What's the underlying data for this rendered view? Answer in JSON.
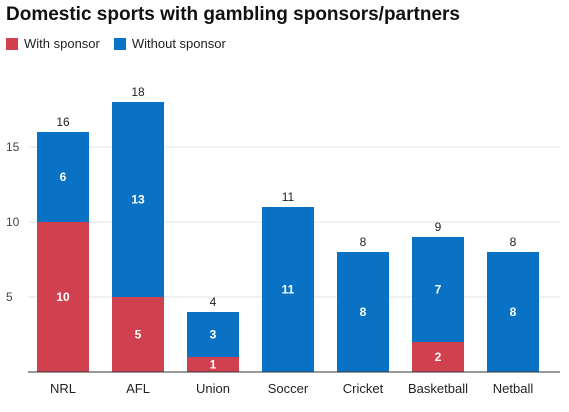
{
  "chart_data": {
    "type": "bar",
    "stacked": true,
    "title": "Domestic sports with gambling sponsors/partners",
    "categories": [
      "NRL",
      "AFL",
      "Union",
      "Soccer",
      "Cricket",
      "Basketball",
      "Netball"
    ],
    "series": [
      {
        "name": "With sponsor",
        "color": "#d0404f",
        "values": [
          10,
          5,
          1,
          0,
          0,
          2,
          0
        ]
      },
      {
        "name": "Without sponsor",
        "color": "#0a72c4",
        "values": [
          6,
          13,
          3,
          11,
          8,
          7,
          8
        ]
      }
    ],
    "totals": [
      16,
      18,
      4,
      11,
      8,
      9,
      8
    ],
    "yticks": [
      5,
      10,
      15
    ],
    "ylim": [
      0,
      18
    ],
    "grid": true,
    "legend": "top-left"
  }
}
